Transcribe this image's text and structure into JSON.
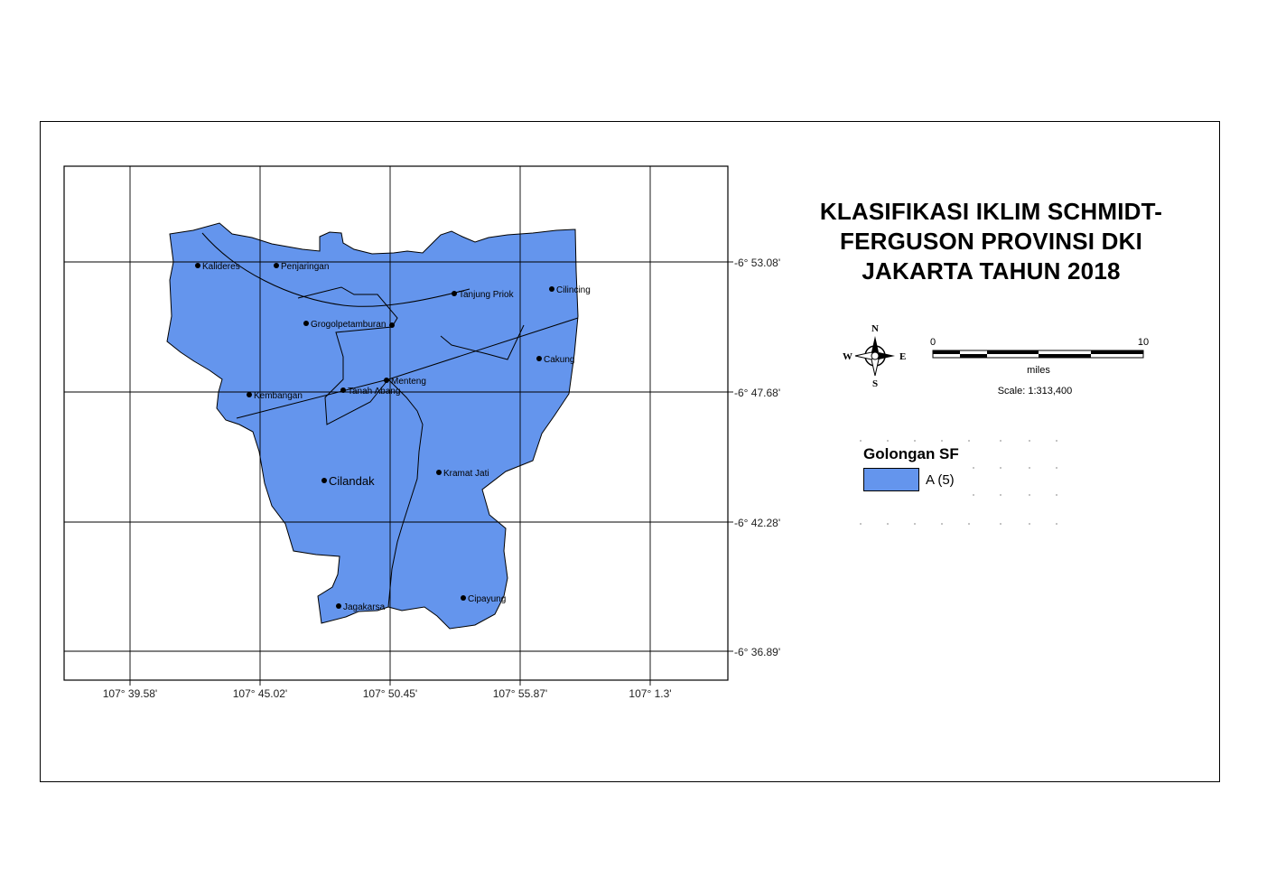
{
  "title": {
    "line1": "KLASIFIKASI IKLIM SCHMIDT-",
    "line2": "FERGUSON PROVINSI DKI",
    "line3": "JAKARTA TAHUN 2018"
  },
  "colors": {
    "region_fill": "#6495ED",
    "grid": "#000000",
    "background": "#FFFFFF"
  },
  "grid": {
    "longitude_labels": [
      "107° 39.58'",
      "107° 45.02'",
      "107° 50.45'",
      "107° 55.87'",
      "107° 1.3'"
    ],
    "latitude_labels": [
      "-6° 53.08'",
      "-6° 47.68'",
      "-6° 42.28'",
      "-6° 36.89'"
    ]
  },
  "places": [
    {
      "name": "Kalideres"
    },
    {
      "name": "Penjaringan"
    },
    {
      "name": "Tanjung Priok"
    },
    {
      "name": "Cilincing"
    },
    {
      "name": "Grogolpetamburan"
    },
    {
      "name": "Cakung"
    },
    {
      "name": "Menteng"
    },
    {
      "name": "Tanah Abang"
    },
    {
      "name": "Kembangan"
    },
    {
      "name": "Cilandak"
    },
    {
      "name": "Kramat Jati"
    },
    {
      "name": "Jagakarsa"
    },
    {
      "name": "Cipayung"
    }
  ],
  "north_arrow": {
    "icon": "compass-rose-icon",
    "n": "N",
    "s": "S",
    "e": "E",
    "w": "W"
  },
  "scale_bar": {
    "start_label": "0",
    "end_label": "10",
    "unit": "miles",
    "scale_text": "Scale: 1:313,400"
  },
  "legend": {
    "title": "Golongan SF",
    "items": [
      {
        "label": "A (5)"
      }
    ]
  }
}
